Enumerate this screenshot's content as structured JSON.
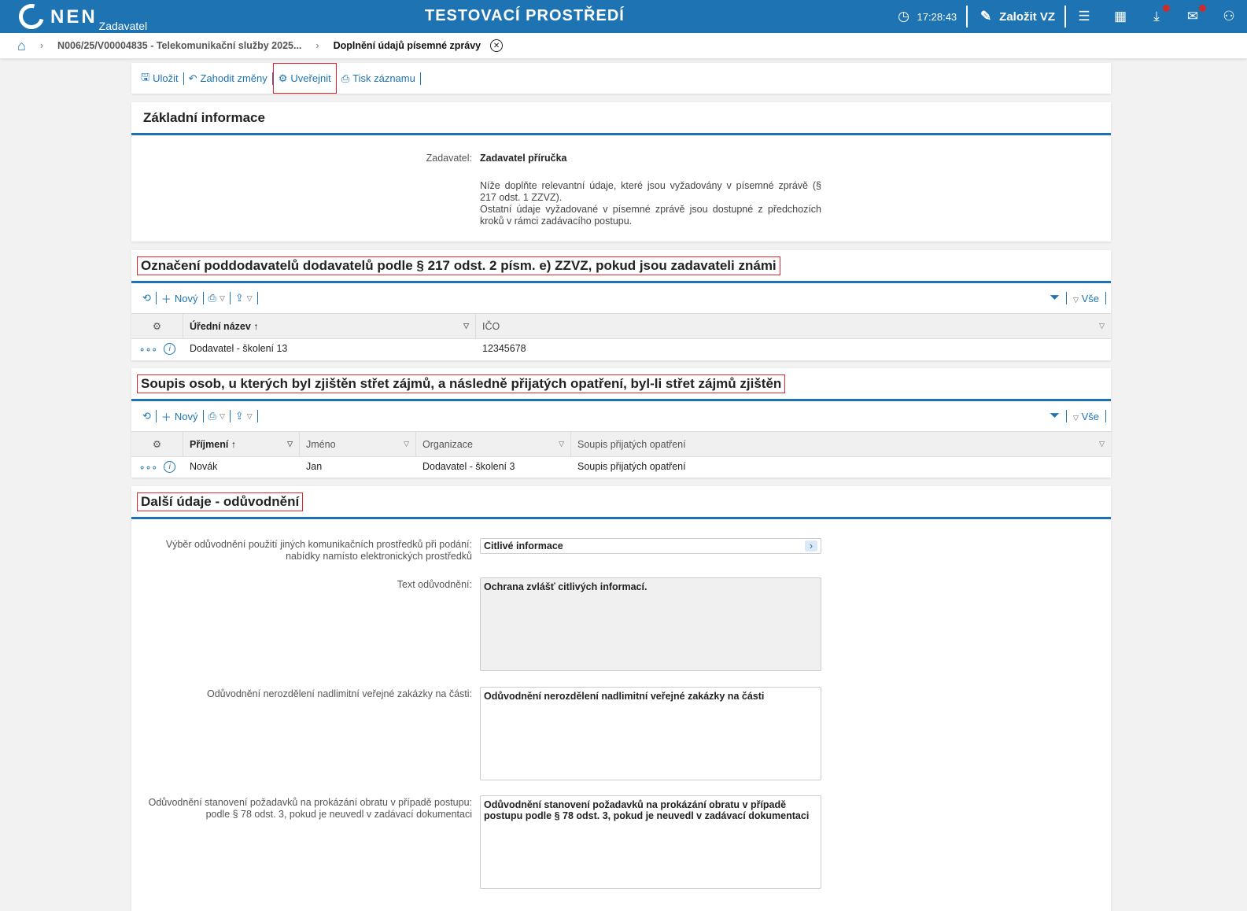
{
  "header": {
    "logo": "NEN",
    "role": "Zadavatel",
    "environment": "TESTOVACÍ PROSTŘEDÍ",
    "time": "17:28:43",
    "create_label": "Založit VZ",
    "brand_color": "#1e74b3",
    "notification_color": "#d02a2a"
  },
  "breadcrumb": {
    "items": [
      "N006/25/V00004835 - Telekomunikační služby 2025...",
      "Doplnění údajů písemné zprávy"
    ]
  },
  "toolbar": {
    "save": "Uložit",
    "discard": "Zahodit změny",
    "publish": "Uveřejnit",
    "print": "Tisk záznamu"
  },
  "basic": {
    "title": "Základní informace",
    "contracting_label": "Zadavatel:",
    "contracting_value": "Zadavatel příručka",
    "note1": "Níže doplňte relevantní údaje, které jsou vyžadovány v písemné zprávě (§ 217 odst. 1 ZZVZ).",
    "note2": "Ostatní údaje vyžadované v písemné zprávě jsou dostupné z předchozích kroků v rámci zadávacího postupu."
  },
  "grid_toolbar": {
    "new": "Nový",
    "all": "Vše"
  },
  "subcontractors": {
    "title": "Označení poddodavatelů dodavatelů podle § 217 odst. 2 písm. e) ZZVZ, pokud jsou zadavateli známi",
    "columns": [
      "Úřední název",
      "IČO"
    ],
    "rows": [
      [
        "Dodavatel - školení 13",
        "12345678"
      ]
    ]
  },
  "conflicts": {
    "title": "Soupis osob, u kterých byl zjištěn střet zájmů, a následně přijatých opatření, byl-li střet zájmů zjištěn",
    "columns": [
      "Příjmení",
      "Jméno",
      "Organizace",
      "Soupis přijatých opatření"
    ],
    "rows": [
      [
        "Novák",
        "Jan",
        "Dodavatel - školení 3",
        "Soupis přijatých opatření"
      ]
    ]
  },
  "other": {
    "title": "Další údaje - odůvodnění",
    "f1_label": "Výběr odůvodnění použití jiných komunikačních prostředků při podání: nabídky namísto elektronických prostředků",
    "f1_value": "Citlivé informace",
    "f2_label": "Text odůvodnění:",
    "f2_value": "Ochrana zvlášť citlivých informací.",
    "f3_label": "Odůvodnění nerozdělení nadlimitní veřejné zakázky na části:",
    "f3_value": "Odůvodnění nerozdělení nadlimitní veřejné zakázky na části",
    "f4_label": "Odůvodnění stanovení požadavků na prokázání obratu v případě postupu: podle § 78 odst. 3, pokud je neuvedl v zadávací dokumentaci",
    "f4_value": "Odůvodnění stanovení požadavků na prokázání obratu v případě postupu podle § 78 odst. 3, pokud je neuvedl v zadávací dokumentaci"
  }
}
